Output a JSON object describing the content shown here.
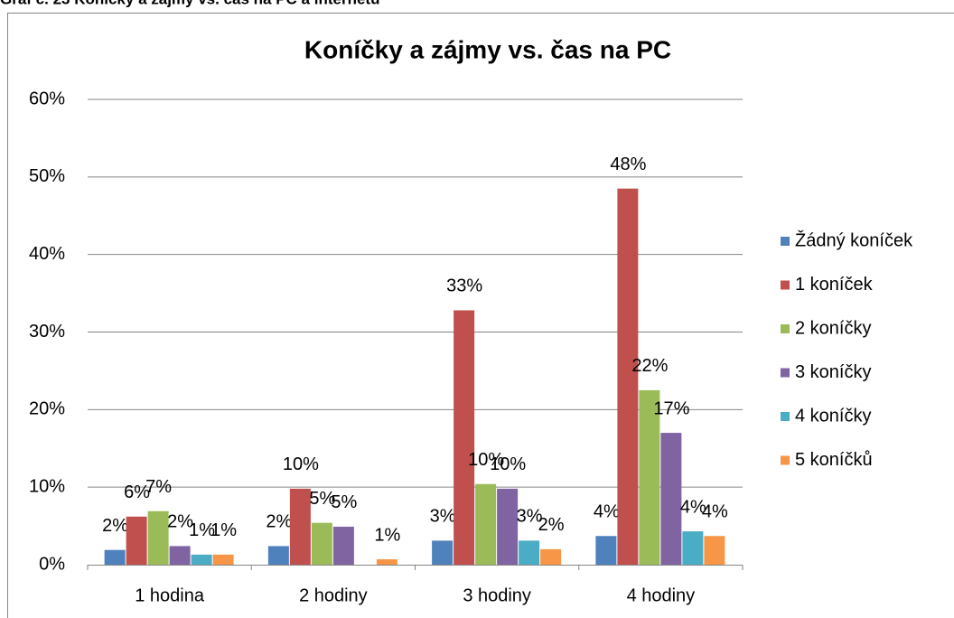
{
  "caption": "Graf č. 23 Koníčky a zájmy vs. čas na PC a internetu",
  "chart_data": {
    "type": "bar",
    "title": "Koníčky a zájmy vs. čas na PC",
    "categories": [
      "1 hodina",
      "2 hodiny",
      "3 hodiny",
      "4 hodiny"
    ],
    "ylim": [
      0,
      60
    ],
    "yticks": [
      {
        "value": 0,
        "label": "0%"
      },
      {
        "value": 10,
        "label": "10%"
      },
      {
        "value": 20,
        "label": "20%"
      },
      {
        "value": 30,
        "label": "30%"
      },
      {
        "value": 40,
        "label": "40%"
      },
      {
        "value": 50,
        "label": "50%"
      },
      {
        "value": 60,
        "label": "60%"
      }
    ],
    "grid": true,
    "legend": "right",
    "series": [
      {
        "name": "Žádný koníček",
        "color": "#4f81bd",
        "values": [
          1.9,
          2.4,
          3.1,
          3.7
        ],
        "value_labels": [
          "2%",
          "2%",
          "3%",
          "4%"
        ]
      },
      {
        "name": "1 koníček",
        "color": "#c0504d",
        "values": [
          6.2,
          9.8,
          32.8,
          48.5
        ],
        "value_labels": [
          "6%",
          "10%",
          "33%",
          "48%"
        ]
      },
      {
        "name": "2 koníčky",
        "color": "#9bbb59",
        "values": [
          6.9,
          5.4,
          10.4,
          22.5
        ],
        "value_labels": [
          "7%",
          "5%",
          "10%",
          "22%"
        ]
      },
      {
        "name": "3 koníčky",
        "color": "#8064a2",
        "values": [
          2.4,
          4.9,
          9.8,
          17.0
        ],
        "value_labels": [
          "2%",
          "5%",
          "10%",
          "17%"
        ]
      },
      {
        "name": "4 koníčky",
        "color": "#4bacc6",
        "values": [
          1.3,
          null,
          3.1,
          4.3
        ],
        "value_labels": [
          "1%",
          null,
          "3%",
          "4%"
        ]
      },
      {
        "name": "5 koníčků",
        "color": "#f79646",
        "values": [
          1.3,
          0.7,
          2.0,
          3.7
        ],
        "value_labels": [
          "1%",
          "1%",
          "2%",
          "4%"
        ]
      }
    ]
  }
}
